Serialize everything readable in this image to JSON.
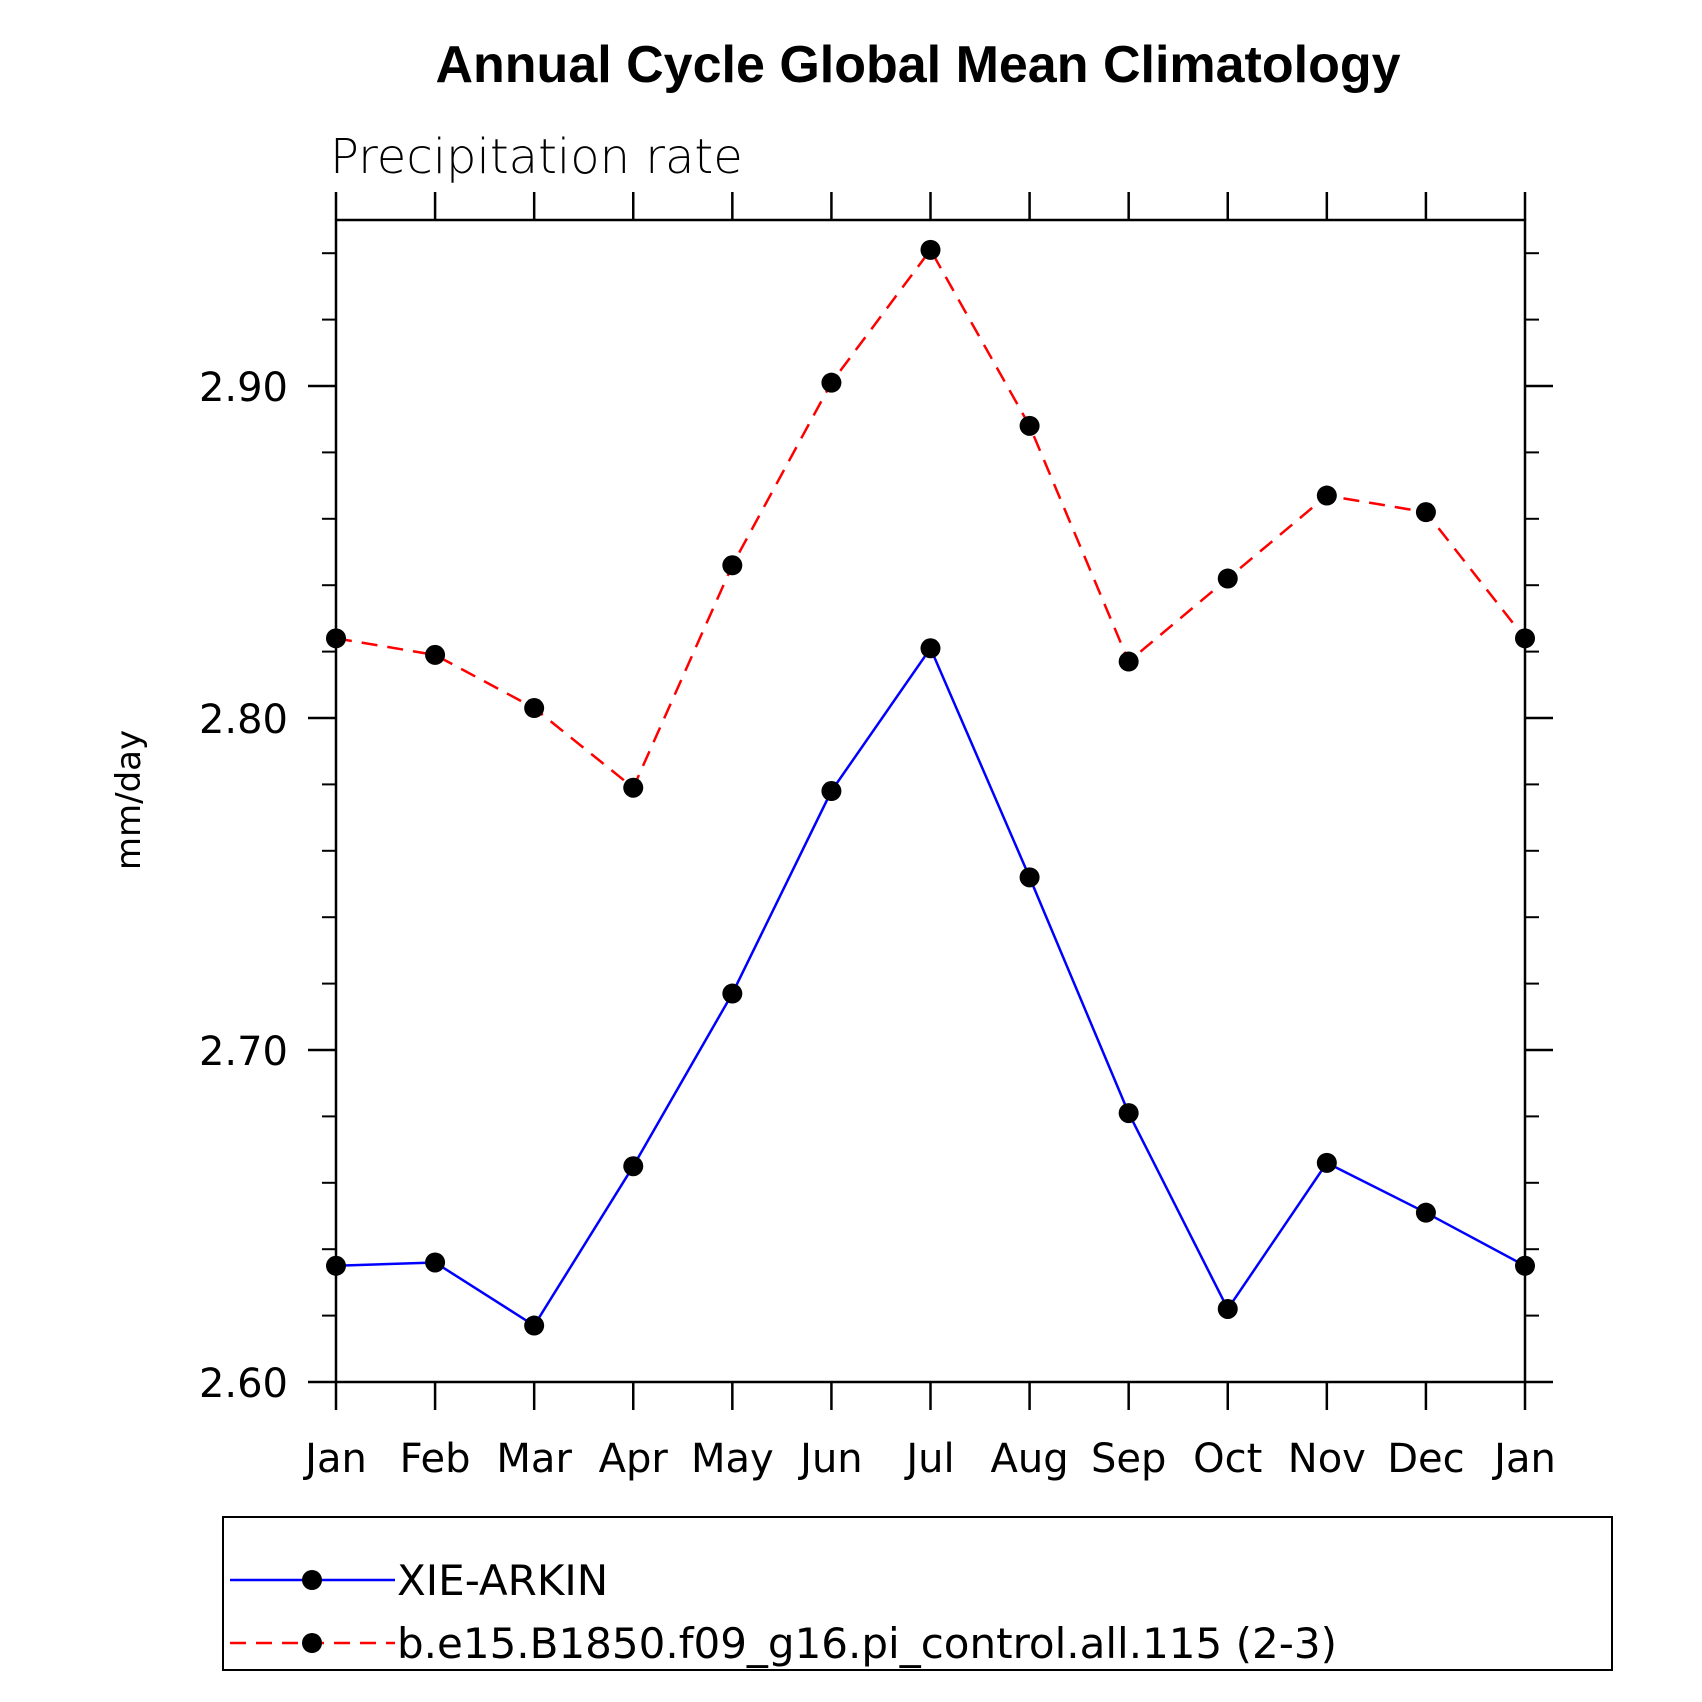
{
  "chart_data": {
    "type": "line",
    "title": "Annual Cycle Global Mean Climatology",
    "subtitle": "Precipitation rate",
    "xlabel": "",
    "ylabel": "mm/day",
    "categories": [
      "Jan",
      "Feb",
      "Mar",
      "Apr",
      "May",
      "Jun",
      "Jul",
      "Aug",
      "Sep",
      "Oct",
      "Nov",
      "Dec",
      "Jan"
    ],
    "ylim": [
      2.6,
      2.95
    ],
    "yticks": [
      2.6,
      2.7,
      2.8,
      2.9
    ],
    "ytick_labels": [
      "2.60",
      "2.70",
      "2.80",
      "2.90"
    ],
    "yminor_step": 0.02,
    "series": [
      {
        "name": "XIE-ARKIN",
        "color": "#0000ff",
        "dash": "solid",
        "marker": "filled-circle",
        "values": [
          2.635,
          2.636,
          2.617,
          2.665,
          2.717,
          2.778,
          2.821,
          2.752,
          2.681,
          2.622,
          2.666,
          2.651,
          2.635
        ]
      },
      {
        "name": "b.e15.B1850.f09_g16.pi_control.all.115 (2-3)",
        "color": "#ff0000",
        "dash": "dashed",
        "marker": "filled-circle",
        "values": [
          2.824,
          2.819,
          2.803,
          2.779,
          2.846,
          2.901,
          2.941,
          2.888,
          2.817,
          2.842,
          2.867,
          2.862,
          2.824
        ]
      }
    ],
    "legend_position": "bottom",
    "grid": false
  }
}
